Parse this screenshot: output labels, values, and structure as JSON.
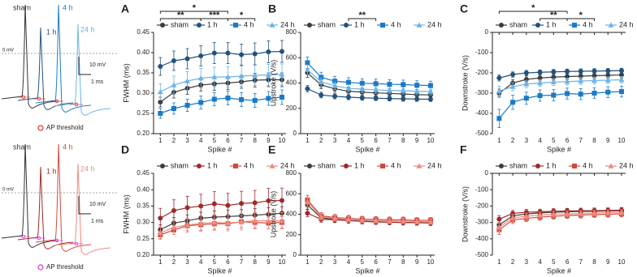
{
  "traces": [
    {
      "labels": [
        "sham",
        "1 h",
        "4 h",
        "24 h"
      ],
      "zero_line": "0 mV",
      "scale_v": "10 mV",
      "scale_t": "1 ms",
      "threshold": "AP threshold"
    },
    {
      "labels": [
        "sham",
        "1 h",
        "4 h",
        "24 h"
      ],
      "zero_line": "0 mV",
      "scale_v": "10 mV",
      "scale_t": "1 ms",
      "threshold": "AP threshold"
    }
  ],
  "chart_data": [
    {
      "type": "line",
      "panel": "A",
      "xlabel": "Spike #",
      "ylabel": "FWHM (ms)",
      "x": [
        1,
        2,
        3,
        4,
        5,
        6,
        7,
        8,
        9,
        10
      ],
      "xlim": [
        0.5,
        10.3
      ],
      "ylim": [
        0.2,
        0.45
      ],
      "yticks": [
        {
          "value": 0.2,
          "label": "0.20"
        },
        {
          "value": 0.25,
          "label": "0.25"
        },
        {
          "value": 0.3,
          "label": "0.30"
        },
        {
          "value": 0.35,
          "label": "0.35"
        },
        {
          "value": 0.4,
          "label": "0.40"
        },
        {
          "value": 0.45,
          "label": "0.45"
        }
      ],
      "annotations": [
        {
          "text": "*",
          "x": [
            1,
            6
          ]
        },
        {
          "text": "**",
          "x": [
            1,
            4
          ]
        },
        {
          "text": "***",
          "x": [
            4,
            6
          ]
        },
        {
          "text": "*",
          "x": [
            6,
            8
          ]
        }
      ],
      "series": [
        {
          "name": "sham",
          "color": "#3d3d3d",
          "marker": "circle",
          "values": [
            0.278,
            0.302,
            0.312,
            0.32,
            0.323,
            0.325,
            0.328,
            0.332,
            0.333,
            0.333
          ],
          "errors": [
            0.012,
            0.014,
            0.015,
            0.015,
            0.016,
            0.016,
            0.016,
            0.017,
            0.017,
            0.017
          ]
        },
        {
          "name": "1 h",
          "color": "#23527c",
          "marker": "circle",
          "values": [
            0.366,
            0.38,
            0.385,
            0.392,
            0.399,
            0.399,
            0.395,
            0.397,
            0.402,
            0.403
          ],
          "errors": [
            0.022,
            0.024,
            0.025,
            0.025,
            0.026,
            0.026,
            0.026,
            0.027,
            0.027,
            0.027
          ]
        },
        {
          "name": "4 h",
          "color": "#1a7ac7",
          "marker": "square",
          "values": [
            0.25,
            0.262,
            0.27,
            0.277,
            0.285,
            0.288,
            0.284,
            0.282,
            0.287,
            0.29
          ],
          "errors": [
            0.012,
            0.014,
            0.015,
            0.016,
            0.016,
            0.017,
            0.017,
            0.017,
            0.017,
            0.018
          ]
        },
        {
          "name": "24 h",
          "color": "#6db3e6",
          "marker": "triangle",
          "values": [
            0.303,
            0.32,
            0.33,
            0.337,
            0.34,
            0.34,
            0.342,
            0.344,
            0.345,
            0.346
          ],
          "errors": [
            0.02,
            0.022,
            0.023,
            0.024,
            0.024,
            0.025,
            0.025,
            0.025,
            0.026,
            0.026
          ]
        }
      ]
    },
    {
      "type": "line",
      "panel": "B",
      "xlabel": "Spike #",
      "ylabel": "Upstroke (V/s)",
      "x": [
        1,
        2,
        3,
        4,
        5,
        6,
        7,
        8,
        9,
        10
      ],
      "xlim": [
        0.5,
        10.3
      ],
      "ylim": [
        0,
        800
      ],
      "yticks": [
        0,
        200,
        400,
        600,
        800
      ],
      "annotations": [
        {
          "text": "**",
          "x": [
            4,
            6
          ]
        }
      ],
      "series": [
        {
          "name": "sham",
          "color": "#3d3d3d",
          "marker": "circle",
          "values": [
            480,
            385,
            355,
            335,
            328,
            322,
            318,
            313,
            308,
            306
          ],
          "errors": [
            35,
            30,
            28,
            27,
            26,
            26,
            25,
            25,
            25,
            25
          ]
        },
        {
          "name": "1 h",
          "color": "#23527c",
          "marker": "circle",
          "values": [
            355,
            305,
            295,
            288,
            283,
            280,
            277,
            275,
            273,
            272
          ],
          "errors": [
            25,
            22,
            20,
            20,
            19,
            19,
            19,
            19,
            18,
            18
          ]
        },
        {
          "name": "4 h",
          "color": "#1a7ac7",
          "marker": "square",
          "values": [
            560,
            445,
            415,
            405,
            398,
            395,
            390,
            388,
            383,
            380
          ],
          "errors": [
            45,
            40,
            38,
            37,
            36,
            36,
            35,
            35,
            35,
            35
          ]
        },
        {
          "name": "24 h",
          "color": "#6db3e6",
          "marker": "triangle",
          "values": [
            505,
            408,
            378,
            358,
            352,
            346,
            342,
            340,
            335,
            333
          ],
          "errors": [
            38,
            33,
            30,
            29,
            28,
            28,
            28,
            27,
            27,
            27
          ]
        }
      ]
    },
    {
      "type": "line",
      "panel": "C",
      "xlabel": "Spike #",
      "ylabel": "Downstroke (V/s)",
      "x": [
        1,
        2,
        3,
        4,
        5,
        6,
        7,
        8,
        9,
        10
      ],
      "xlim": [
        0.5,
        10.3
      ],
      "ylim": [
        -500,
        0
      ],
      "yticks": [
        -500,
        -400,
        -300,
        -200,
        -100,
        0
      ],
      "annotations": [
        {
          "text": "*",
          "x": [
            1,
            6
          ]
        },
        {
          "text": "**",
          "x": [
            4,
            6
          ]
        },
        {
          "text": "*",
          "x": [
            6,
            8
          ]
        }
      ],
      "series": [
        {
          "name": "sham",
          "color": "#3d3d3d",
          "marker": "circle",
          "values": [
            -300,
            -250,
            -232,
            -225,
            -221,
            -218,
            -216,
            -214,
            -212,
            -210
          ],
          "errors": [
            20,
            17,
            16,
            15,
            15,
            15,
            15,
            15,
            15,
            15
          ]
        },
        {
          "name": "1 h",
          "color": "#23527c",
          "marker": "circle",
          "values": [
            -225,
            -208,
            -200,
            -197,
            -195,
            -193,
            -192,
            -191,
            -190,
            -189
          ],
          "errors": [
            15,
            13,
            12,
            12,
            12,
            12,
            12,
            12,
            12,
            12
          ]
        },
        {
          "name": "4 h",
          "color": "#1a7ac7",
          "marker": "square",
          "values": [
            -425,
            -345,
            -325,
            -312,
            -310,
            -302,
            -305,
            -300,
            -295,
            -292
          ],
          "errors": [
            45,
            35,
            30,
            28,
            28,
            27,
            27,
            27,
            27,
            27
          ]
        },
        {
          "name": "24 h",
          "color": "#6db3e6",
          "marker": "triangle",
          "values": [
            -290,
            -268,
            -255,
            -250,
            -245,
            -243,
            -240,
            -238,
            -236,
            -234
          ],
          "errors": [
            25,
            20,
            18,
            17,
            17,
            17,
            17,
            17,
            16,
            16
          ]
        }
      ]
    },
    {
      "type": "line",
      "panel": "D",
      "xlabel": "Spike #",
      "ylabel": "FWHM (ms)",
      "x": [
        1,
        2,
        3,
        4,
        5,
        6,
        7,
        8,
        9,
        10
      ],
      "xlim": [
        0.5,
        10.3
      ],
      "ylim": [
        0.2,
        0.45
      ],
      "yticks": [
        {
          "value": 0.2,
          "label": "0.20"
        },
        {
          "value": 0.25,
          "label": "0.25"
        },
        {
          "value": 0.3,
          "label": "0.30"
        },
        {
          "value": 0.35,
          "label": "0.35"
        },
        {
          "value": 0.4,
          "label": "0.40"
        },
        {
          "value": 0.45,
          "label": "0.45"
        }
      ],
      "annotations": [],
      "series": [
        {
          "name": "sham",
          "color": "#3d3d3d",
          "marker": "circle",
          "values": [
            0.278,
            0.298,
            0.305,
            0.313,
            0.316,
            0.318,
            0.32,
            0.322,
            0.325,
            0.328
          ],
          "errors": [
            0.015,
            0.017,
            0.018,
            0.018,
            0.019,
            0.019,
            0.019,
            0.02,
            0.02,
            0.02
          ]
        },
        {
          "name": "1 h",
          "color": "#9e2a2b",
          "marker": "circle",
          "values": [
            0.313,
            0.336,
            0.345,
            0.35,
            0.357,
            0.352,
            0.358,
            0.36,
            0.366,
            0.367
          ],
          "errors": [
            0.03,
            0.033,
            0.035,
            0.036,
            0.037,
            0.037,
            0.037,
            0.038,
            0.038,
            0.038
          ]
        },
        {
          "name": "4 h",
          "color": "#cf4a3c",
          "marker": "square",
          "values": [
            0.262,
            0.277,
            0.29,
            0.293,
            0.296,
            0.296,
            0.302,
            0.3,
            0.298,
            0.3
          ],
          "errors": [
            0.012,
            0.014,
            0.016,
            0.017,
            0.017,
            0.017,
            0.018,
            0.018,
            0.018,
            0.018
          ]
        },
        {
          "name": "24 h",
          "color": "#f08a80",
          "marker": "triangle",
          "values": [
            0.268,
            0.285,
            0.292,
            0.297,
            0.3,
            0.298,
            0.302,
            0.305,
            0.305,
            0.305
          ],
          "errors": [
            0.02,
            0.022,
            0.023,
            0.024,
            0.024,
            0.024,
            0.025,
            0.025,
            0.025,
            0.025
          ]
        }
      ]
    },
    {
      "type": "line",
      "panel": "E",
      "xlabel": "Spike #",
      "ylabel": "Upstroke (V/s)",
      "x": [
        1,
        2,
        3,
        4,
        5,
        6,
        7,
        8,
        9,
        10
      ],
      "xlim": [
        0.5,
        10.3
      ],
      "ylim": [
        0,
        800
      ],
      "yticks": [
        0,
        200,
        400,
        600,
        800
      ],
      "annotations": [],
      "series": [
        {
          "name": "sham",
          "color": "#3d3d3d",
          "marker": "circle",
          "values": [
            490,
            365,
            350,
            340,
            332,
            328,
            322,
            320,
            318,
            315
          ],
          "errors": [
            40,
            30,
            28,
            27,
            26,
            26,
            25,
            25,
            25,
            25
          ]
        },
        {
          "name": "1 h",
          "color": "#9e2a2b",
          "marker": "circle",
          "values": [
            410,
            350,
            345,
            338,
            330,
            325,
            322,
            320,
            318,
            315
          ],
          "errors": [
            35,
            28,
            27,
            26,
            25,
            25,
            25,
            25,
            24,
            24
          ]
        },
        {
          "name": "4 h",
          "color": "#cf4a3c",
          "marker": "square",
          "values": [
            540,
            385,
            368,
            360,
            352,
            350,
            345,
            345,
            340,
            340
          ],
          "errors": [
            45,
            32,
            30,
            29,
            28,
            28,
            28,
            28,
            27,
            27
          ]
        },
        {
          "name": "24 h",
          "color": "#f08a80",
          "marker": "triangle",
          "values": [
            520,
            375,
            360,
            350,
            342,
            340,
            335,
            334,
            330,
            328
          ],
          "errors": [
            42,
            30,
            28,
            27,
            27,
            26,
            26,
            26,
            26,
            26
          ]
        }
      ]
    },
    {
      "type": "line",
      "panel": "F",
      "xlabel": "Spike #",
      "ylabel": "Downstroke (V/s)",
      "x": [
        1,
        2,
        3,
        4,
        5,
        6,
        7,
        8,
        9,
        10
      ],
      "xlim": [
        0.5,
        10.3
      ],
      "ylim": [
        -500,
        0
      ],
      "yticks": [
        -500,
        -400,
        -300,
        -200,
        -100,
        0
      ],
      "annotations": [],
      "series": [
        {
          "name": "sham",
          "color": "#3d3d3d",
          "marker": "circle",
          "values": [
            -315,
            -260,
            -248,
            -242,
            -238,
            -235,
            -233,
            -232,
            -230,
            -228
          ],
          "errors": [
            25,
            20,
            18,
            17,
            17,
            17,
            16,
            16,
            16,
            16
          ]
        },
        {
          "name": "1 h",
          "color": "#9e2a2b",
          "marker": "circle",
          "values": [
            -280,
            -245,
            -238,
            -235,
            -232,
            -230,
            -229,
            -228,
            -227,
            -225
          ],
          "errors": [
            22,
            18,
            17,
            16,
            16,
            16,
            16,
            16,
            16,
            16
          ]
        },
        {
          "name": "4 h",
          "color": "#cf4a3c",
          "marker": "square",
          "values": [
            -345,
            -285,
            -275,
            -268,
            -262,
            -258,
            -255,
            -252,
            -250,
            -248
          ],
          "errors": [
            28,
            22,
            20,
            19,
            19,
            18,
            18,
            18,
            18,
            18
          ]
        },
        {
          "name": "24 h",
          "color": "#f08a80",
          "marker": "triangle",
          "values": [
            -330,
            -272,
            -262,
            -255,
            -250,
            -248,
            -245,
            -243,
            -240,
            -238
          ],
          "errors": [
            26,
            21,
            19,
            18,
            18,
            18,
            17,
            17,
            17,
            17
          ]
        }
      ]
    }
  ]
}
